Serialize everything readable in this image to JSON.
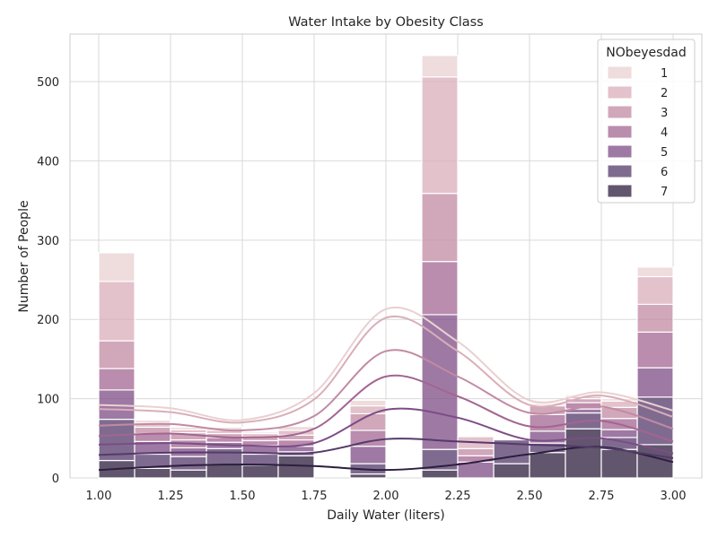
{
  "chart_data": {
    "type": "bar",
    "subtype": "stacked-histogram-with-kde",
    "title": "Water Intake by Obesity Class",
    "xlabel": "Daily Water (liters)",
    "ylabel": "Number of People",
    "xlim": [
      0.9,
      3.1
    ],
    "ylim": [
      0,
      560
    ],
    "xticks": [
      1.0,
      1.25,
      1.5,
      1.75,
      2.0,
      2.25,
      2.5,
      2.75,
      3.0
    ],
    "xtick_labels": [
      "1.00",
      "1.25",
      "1.50",
      "1.75",
      "2.00",
      "2.25",
      "2.50",
      "2.75",
      "3.00"
    ],
    "yticks": [
      0,
      100,
      200,
      300,
      400,
      500
    ],
    "ytick_labels": [
      "0",
      "100",
      "200",
      "300",
      "400",
      "500"
    ],
    "grid": true,
    "legend": {
      "title": "NObeyesdad",
      "position": "top-right",
      "entries": [
        "1",
        "2",
        "3",
        "4",
        "5",
        "6",
        "7"
      ]
    },
    "bin_edges": [
      1.0,
      1.125,
      1.25,
      1.375,
      1.5,
      1.625,
      1.75,
      1.875,
      2.0,
      2.125,
      2.25,
      2.375,
      2.5,
      2.625,
      2.75,
      2.875,
      3.0
    ],
    "series": [
      {
        "name": "7",
        "color": "#2d1e3e",
        "values": [
          22,
          12,
          10,
          17,
          16,
          28,
          0,
          5,
          0,
          10,
          0,
          18,
          32,
          62,
          36,
          42
        ]
      },
      {
        "name": "6",
        "color": "#553a6b",
        "values": [
          52,
          18,
          17,
          20,
          14,
          5,
          0,
          13,
          0,
          26,
          0,
          30,
          12,
          20,
          15,
          60
        ]
      },
      {
        "name": "5",
        "color": "#7d4c86",
        "values": [
          37,
          16,
          11,
          8,
          11,
          7,
          0,
          22,
          0,
          170,
          20,
          0,
          15,
          5,
          10,
          37
        ]
      },
      {
        "name": "4",
        "color": "#a36591",
        "values": [
          27,
          10,
          10,
          6,
          6,
          8,
          0,
          20,
          0,
          67,
          8,
          0,
          21,
          8,
          14,
          45
        ]
      },
      {
        "name": "3",
        "color": "#c28aa3",
        "values": [
          35,
          8,
          9,
          5,
          5,
          6,
          0,
          21,
          0,
          86,
          9,
          0,
          11,
          5,
          14,
          35
        ]
      },
      {
        "name": "2",
        "color": "#d9aeb9",
        "values": [
          75,
          5,
          4,
          4,
          4,
          6,
          0,
          10,
          0,
          147,
          15,
          0,
          2,
          3,
          8,
          35
        ]
      },
      {
        "name": "1",
        "color": "#ead0d1",
        "values": [
          36,
          4,
          3,
          4,
          2,
          5,
          0,
          7,
          0,
          27,
          0,
          0,
          2,
          2,
          3,
          12
        ]
      }
    ],
    "kde_cumulative_approx": [
      {
        "name": "7",
        "x": [
          1.0,
          1.25,
          1.5,
          1.75,
          2.0,
          2.25,
          2.5,
          2.75,
          3.0
        ],
        "y": [
          10,
          15,
          17,
          15,
          10,
          17,
          30,
          39,
          20
        ]
      },
      {
        "name": "6",
        "x": [
          1.0,
          1.25,
          1.5,
          1.75,
          2.0,
          2.25,
          2.5,
          2.75,
          3.0
        ],
        "y": [
          29,
          32,
          32,
          32,
          49,
          46,
          42,
          38,
          25
        ]
      },
      {
        "name": "5",
        "x": [
          1.0,
          1.25,
          1.5,
          1.75,
          2.0,
          2.25,
          2.5,
          2.75,
          3.0
        ],
        "y": [
          42,
          44,
          41,
          44,
          86,
          76,
          48,
          50,
          31
        ]
      },
      {
        "name": "4",
        "x": [
          1.0,
          1.25,
          1.5,
          1.75,
          2.0,
          2.25,
          2.5,
          2.75,
          3.0
        ],
        "y": [
          53,
          56,
          51,
          62,
          128,
          103,
          65,
          72,
          46
        ]
      },
      {
        "name": "3",
        "x": [
          1.0,
          1.25,
          1.5,
          1.75,
          2.0,
          2.25,
          2.5,
          2.75,
          3.0
        ],
        "y": [
          66,
          68,
          60,
          78,
          160,
          128,
          82,
          90,
          62
        ]
      },
      {
        "name": "2",
        "x": [
          1.0,
          1.25,
          1.5,
          1.75,
          2.0,
          2.25,
          2.5,
          2.75,
          3.0
        ],
        "y": [
          87,
          83,
          70,
          99,
          202,
          160,
          92,
          104,
          77
        ]
      },
      {
        "name": "1",
        "x": [
          1.0,
          1.25,
          1.5,
          1.75,
          2.0,
          2.25,
          2.5,
          2.75,
          3.0
        ],
        "y": [
          92,
          88,
          73,
          107,
          213,
          172,
          98,
          108,
          85
        ]
      }
    ]
  }
}
